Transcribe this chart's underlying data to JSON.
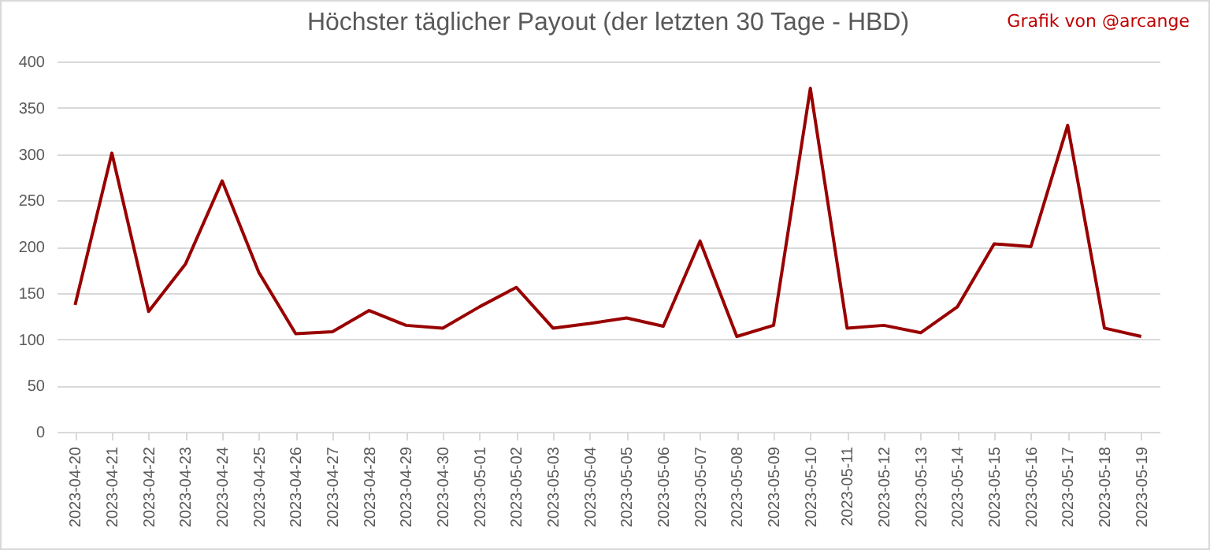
{
  "chart_data": {
    "type": "line",
    "title": "Höchster täglicher Payout (der letzten 30 Tage - HBD)",
    "annotations": [
      "Grafik von @arcange"
    ],
    "categories": [
      "2023-04-20",
      "2023-04-21",
      "2023-04-22",
      "2023-04-23",
      "2023-04-24",
      "2023-04-25",
      "2023-04-26",
      "2023-04-27",
      "2023-04-28",
      "2023-04-29",
      "2023-04-30",
      "2023-05-01",
      "2023-05-02",
      "2023-05-03",
      "2023-05-04",
      "2023-05-05",
      "2023-05-06",
      "2023-05-07",
      "2023-05-08",
      "2023-05-09",
      "2023-05-10",
      "2023-05-11",
      "2023-05-12",
      "2023-05-13",
      "2023-05-14",
      "2023-05-15",
      "2023-05-16",
      "2023-05-17",
      "2023-05-18",
      "2023-05-19"
    ],
    "series": [
      {
        "color": "#990000",
        "values": [
          137,
          301,
          130,
          181,
          271,
          172,
          106,
          108,
          131,
          115,
          112,
          135,
          156,
          112,
          117,
          123,
          114,
          206,
          103,
          115,
          371,
          112,
          115,
          107,
          135,
          203,
          200,
          331,
          112,
          103
        ]
      }
    ],
    "ylim": [
      0,
      400
    ],
    "yticks": [
      0,
      50,
      100,
      150,
      200,
      250,
      300,
      350,
      400
    ],
    "grid": "y",
    "legend": false,
    "marker": "none",
    "line_style": "solid"
  }
}
